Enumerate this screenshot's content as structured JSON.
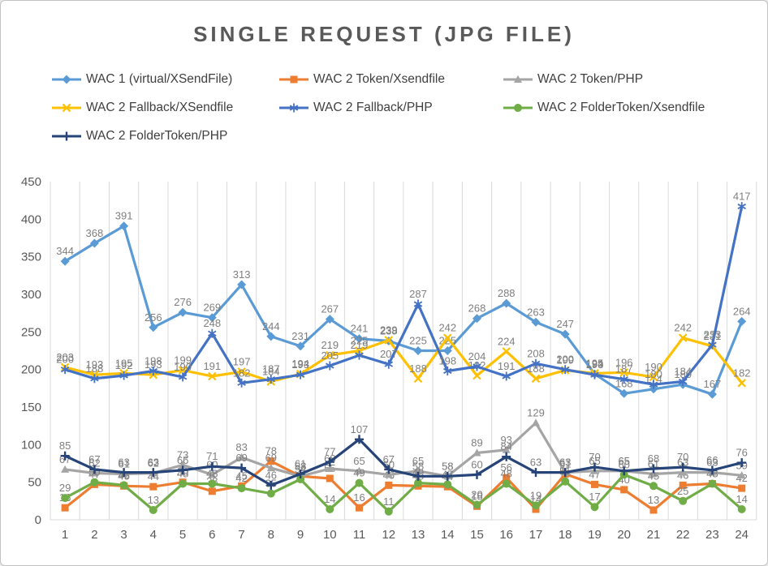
{
  "title": "SINGLE REQUEST (JPG FILE)",
  "chart_data": {
    "type": "line",
    "title": "SINGLE REQUEST (JPG FILE)",
    "categories": [
      1,
      2,
      3,
      4,
      5,
      6,
      7,
      8,
      9,
      10,
      11,
      12,
      13,
      14,
      15,
      16,
      17,
      18,
      19,
      20,
      21,
      22,
      23,
      24
    ],
    "xlabel": "",
    "ylabel": "",
    "ylim": [
      0,
      450
    ],
    "y_tick_step": 50,
    "grid": "vertical-only",
    "legend_position": "top-left",
    "data_labels": "all-points",
    "colors": {
      "grid": "#d9d9d9",
      "axis_text": "#595959",
      "label_text": "#7f7f7f",
      "title_text": "#595959",
      "legend_text": "#404040"
    },
    "series": [
      {
        "name": "WAC 1 (virtual/XSendFile)",
        "color": "#5B9BD5",
        "marker": "diamond",
        "values": [
          344,
          368,
          391,
          256,
          276,
          269,
          313,
          244,
          231,
          267,
          241,
          238,
          225,
          225,
          268,
          288,
          263,
          247,
          194,
          168,
          174,
          180,
          167,
          264
        ]
      },
      {
        "name": "WAC 2 Token/Xsendfile",
        "color": "#ED7D31",
        "marker": "square",
        "values": [
          16,
          47,
          45,
          44,
          50,
          38,
          45,
          78,
          58,
          55,
          16,
          46,
          45,
          44,
          18,
          56,
          14,
          61,
          47,
          40,
          13,
          46,
          48,
          42
        ]
      },
      {
        "name": "WAC 2 Token/PHP",
        "color": "#A5A5A5",
        "marker": "triangle",
        "values": [
          67,
          62,
          61,
          62,
          73,
          60,
          83,
          69,
          58,
          68,
          65,
          60,
          65,
          58,
          89,
          93,
          129,
          63,
          65,
          65,
          61,
          63,
          63,
          59
        ]
      },
      {
        "name": "WAC 2 Fallback/XSendfile",
        "color": "#FFC000",
        "marker": "x",
        "values": [
          203,
          193,
          195,
          193,
          199,
          191,
          197,
          184,
          194,
          219,
          225,
          239,
          188,
          242,
          192,
          224,
          188,
          199,
          195,
          196,
          190,
          242,
          231,
          182
        ]
      },
      {
        "name": "WAC 2 Fallback/PHP",
        "color": "#4472C4",
        "marker": "star",
        "values": [
          200,
          188,
          192,
          198,
          190,
          248,
          182,
          187,
          193,
          205,
          219,
          207,
          287,
          198,
          204,
          191,
          208,
          200,
          193,
          187,
          180,
          184,
          233,
          417
        ]
      },
      {
        "name": "WAC 2 FolderToken/Xsendfile",
        "color": "#70AD47",
        "marker": "circle",
        "values": [
          29,
          50,
          46,
          13,
          48,
          48,
          42,
          35,
          54,
          14,
          49,
          11,
          49,
          47,
          20,
          48,
          19,
          51,
          17,
          60,
          45,
          25,
          48,
          14
        ]
      },
      {
        "name": "WAC 2 FolderToken/PHP",
        "color": "#264478",
        "marker": "plus",
        "values": [
          85,
          67,
          63,
          63,
          66,
          71,
          69,
          46,
          61,
          77,
          107,
          67,
          58,
          58,
          60,
          84,
          63,
          63,
          70,
          65,
          68,
          70,
          66,
          76
        ]
      }
    ]
  }
}
